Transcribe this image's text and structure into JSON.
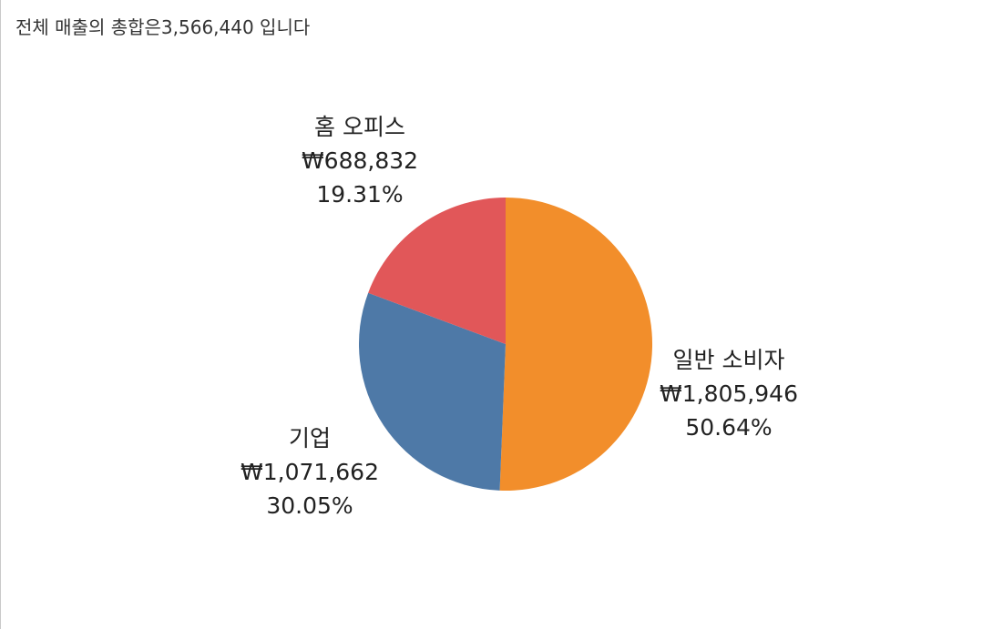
{
  "title": "전체 매출의 총합은3,566,440 입니다",
  "chart_data": {
    "type": "pie",
    "title": "전체 매출의 총합은3,566,440 입니다",
    "total": 3566440,
    "slices": [
      {
        "name": "일반 소비자",
        "value": 1805946,
        "value_label": "₩1,805,946",
        "percent_label": "50.64%",
        "color": "#F28E2B"
      },
      {
        "name": "기업",
        "value": 1071662,
        "value_label": "₩1,071,662",
        "percent_label": "30.05%",
        "color": "#4E79A7"
      },
      {
        "name": "홈 오피스",
        "value": 688832,
        "value_label": "₩688,832",
        "percent_label": "19.31%",
        "color": "#E15759"
      }
    ]
  }
}
